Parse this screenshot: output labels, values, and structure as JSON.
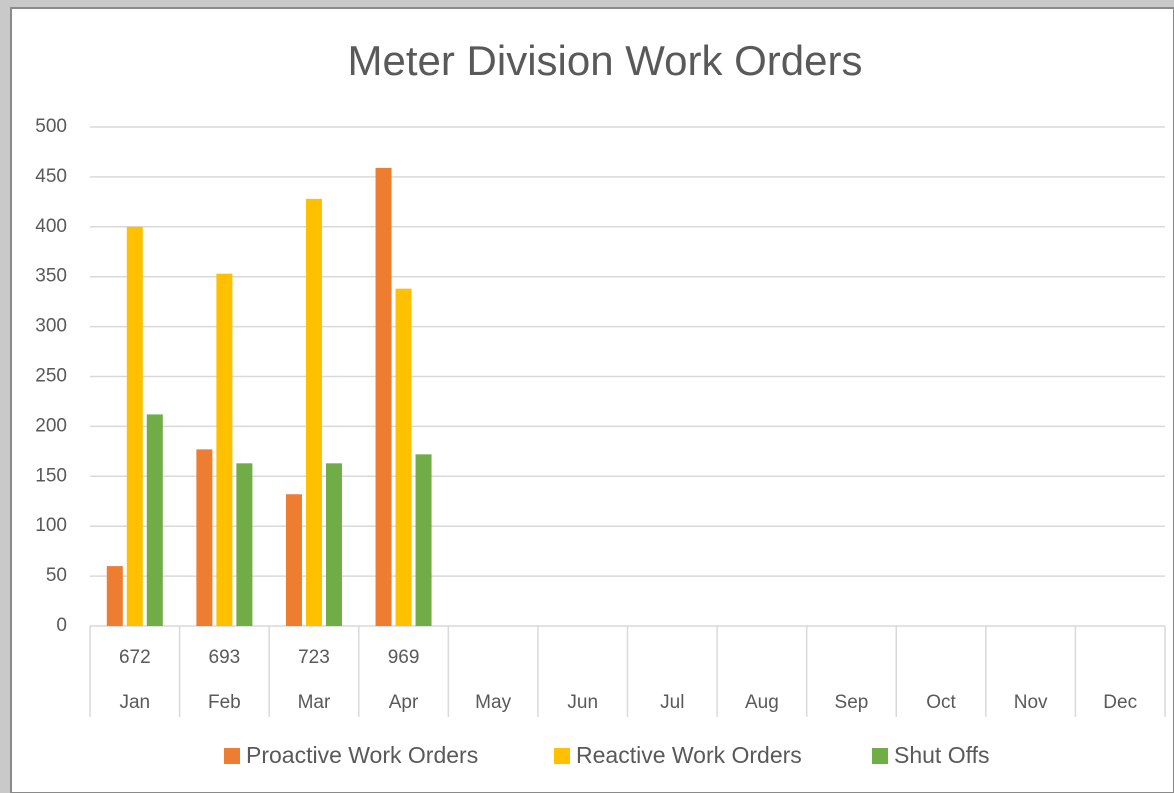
{
  "chart_data": {
    "type": "bar",
    "title": "Meter Division Work Orders",
    "categories": [
      "Jan",
      "Feb",
      "Mar",
      "Apr",
      "May",
      "Jun",
      "Jul",
      "Aug",
      "Sep",
      "Oct",
      "Nov",
      "Dec"
    ],
    "category_totals": [
      672,
      693,
      723,
      969,
      null,
      null,
      null,
      null,
      null,
      null,
      null,
      null
    ],
    "series": [
      {
        "name": "Proactive Work Orders",
        "color": "#ed7d31",
        "values": [
          60,
          177,
          132,
          459,
          null,
          null,
          null,
          null,
          null,
          null,
          null,
          null
        ]
      },
      {
        "name": "Reactive Work Orders",
        "color": "#ffc000",
        "values": [
          400,
          353,
          428,
          338,
          null,
          null,
          null,
          null,
          null,
          null,
          null,
          null
        ]
      },
      {
        "name": "Shut Offs",
        "color": "#70ad47",
        "values": [
          212,
          163,
          163,
          172,
          null,
          null,
          null,
          null,
          null,
          null,
          null,
          null
        ]
      }
    ],
    "ylim": [
      0,
      500
    ],
    "yticks": [
      0,
      50,
      100,
      150,
      200,
      250,
      300,
      350,
      400,
      450,
      500
    ],
    "grid": true,
    "legend": "bottom"
  }
}
